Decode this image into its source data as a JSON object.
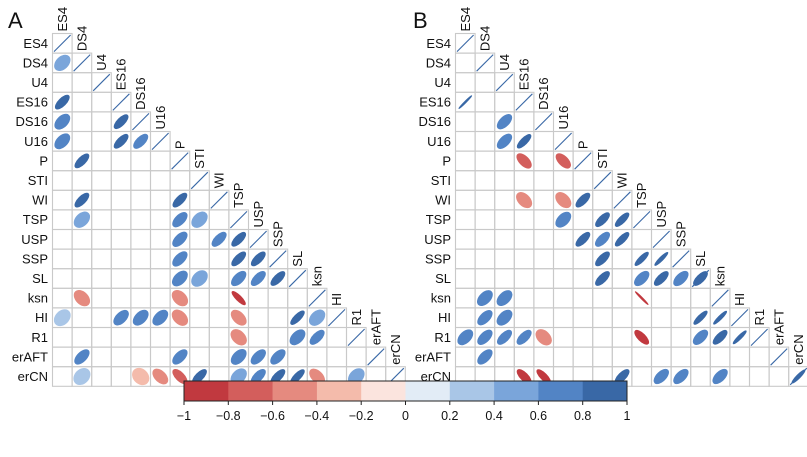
{
  "chart_data": {
    "type": "correlogram",
    "variables": [
      "ES4",
      "DS4",
      "U4",
      "ES16",
      "DS16",
      "U16",
      "P",
      "STI",
      "WI",
      "TSP",
      "USP",
      "SSP",
      "SL",
      "ksn",
      "HI",
      "R1",
      "erAFT",
      "erCN"
    ],
    "panels": [
      {
        "label": "A",
        "correlations": [
          {
            "row": "DS4",
            "col": "ES4",
            "r": 0.5
          },
          {
            "row": "ES16",
            "col": "ES4",
            "r": 0.8
          },
          {
            "row": "DS16",
            "col": "ES4",
            "r": 0.6
          },
          {
            "row": "DS16",
            "col": "ES16",
            "r": 0.8
          },
          {
            "row": "U16",
            "col": "ES4",
            "r": 0.6
          },
          {
            "row": "U16",
            "col": "ES16",
            "r": 0.8
          },
          {
            "row": "U16",
            "col": "DS16",
            "r": 0.75
          },
          {
            "row": "P",
            "col": "DS4",
            "r": 0.8
          },
          {
            "row": "WI",
            "col": "DS4",
            "r": 0.8
          },
          {
            "row": "WI",
            "col": "P",
            "r": 0.8
          },
          {
            "row": "TSP",
            "col": "DS4",
            "r": 0.5
          },
          {
            "row": "TSP",
            "col": "P",
            "r": 0.7
          },
          {
            "row": "TSP",
            "col": "STI",
            "r": 0.5
          },
          {
            "row": "USP",
            "col": "P",
            "r": 0.7
          },
          {
            "row": "USP",
            "col": "WI",
            "r": 0.75
          },
          {
            "row": "USP",
            "col": "TSP",
            "r": 0.8
          },
          {
            "row": "SSP",
            "col": "P",
            "r": 0.7
          },
          {
            "row": "SSP",
            "col": "TSP",
            "r": 0.8
          },
          {
            "row": "SSP",
            "col": "USP",
            "r": 0.8
          },
          {
            "row": "SL",
            "col": "P",
            "r": 0.6
          },
          {
            "row": "SL",
            "col": "STI",
            "r": 0.45
          },
          {
            "row": "SL",
            "col": "TSP",
            "r": 0.7
          },
          {
            "row": "SL",
            "col": "USP",
            "r": 0.75
          },
          {
            "row": "SL",
            "col": "SSP",
            "r": 0.8
          },
          {
            "row": "ksn",
            "col": "DS4",
            "r": -0.5
          },
          {
            "row": "ksn",
            "col": "P",
            "r": -0.5
          },
          {
            "row": "ksn",
            "col": "TSP",
            "r": -0.9
          },
          {
            "row": "HI",
            "col": "ES4",
            "r": 0.4
          },
          {
            "row": "HI",
            "col": "ES16",
            "r": 0.65
          },
          {
            "row": "HI",
            "col": "DS16",
            "r": 0.6
          },
          {
            "row": "HI",
            "col": "U16",
            "r": 0.6
          },
          {
            "row": "HI",
            "col": "P",
            "r": -0.5
          },
          {
            "row": "HI",
            "col": "TSP",
            "r": -0.6
          },
          {
            "row": "HI",
            "col": "SL",
            "r": 0.85
          },
          {
            "row": "HI",
            "col": "ksn",
            "r": 0.5
          },
          {
            "row": "R1",
            "col": "TSP",
            "r": -0.5
          },
          {
            "row": "R1",
            "col": "SL",
            "r": 0.6
          },
          {
            "row": "R1",
            "col": "ksn",
            "r": 0.75
          },
          {
            "row": "erAFT",
            "col": "DS4",
            "r": 0.7
          },
          {
            "row": "erAFT",
            "col": "P",
            "r": 0.7
          },
          {
            "row": "erAFT",
            "col": "TSP",
            "r": 0.6
          },
          {
            "row": "erAFT",
            "col": "USP",
            "r": 0.7
          },
          {
            "row": "erAFT",
            "col": "SSP",
            "r": 0.7
          },
          {
            "row": "erCN",
            "col": "DS4",
            "r": 0.35
          },
          {
            "row": "erCN",
            "col": "DS16",
            "r": -0.3
          },
          {
            "row": "erCN",
            "col": "U16",
            "r": -0.6
          },
          {
            "row": "erCN",
            "col": "P",
            "r": -0.75
          },
          {
            "row": "erCN",
            "col": "STI",
            "r": 0.8
          },
          {
            "row": "erCN",
            "col": "TSP",
            "r": 0.5
          },
          {
            "row": "erCN",
            "col": "USP",
            "r": 0.75
          },
          {
            "row": "erCN",
            "col": "SSP",
            "r": 0.8
          },
          {
            "row": "erCN",
            "col": "SL",
            "r": 0.85
          },
          {
            "row": "erCN",
            "col": "ksn",
            "r": -0.6
          },
          {
            "row": "erCN",
            "col": "R1",
            "r": 0.45
          }
        ]
      },
      {
        "label": "B",
        "correlations": [
          {
            "row": "ES16",
            "col": "ES4",
            "r": 1.0
          },
          {
            "row": "DS16",
            "col": "U4",
            "r": 0.7
          },
          {
            "row": "U16",
            "col": "U4",
            "r": 0.7
          },
          {
            "row": "U16",
            "col": "ES16",
            "r": 0.85
          },
          {
            "row": "P",
            "col": "ES16",
            "r": -0.7
          },
          {
            "row": "P",
            "col": "U16",
            "r": -0.7
          },
          {
            "row": "WI",
            "col": "ES16",
            "r": -0.55
          },
          {
            "row": "WI",
            "col": "U16",
            "r": -0.55
          },
          {
            "row": "WI",
            "col": "P",
            "r": 0.8
          },
          {
            "row": "TSP",
            "col": "U16",
            "r": 0.6
          },
          {
            "row": "TSP",
            "col": "STI",
            "r": 0.8
          },
          {
            "row": "TSP",
            "col": "WI",
            "r": 0.85
          },
          {
            "row": "USP",
            "col": "P",
            "r": 0.8
          },
          {
            "row": "USP",
            "col": "STI",
            "r": 0.75
          },
          {
            "row": "USP",
            "col": "WI",
            "r": 0.85
          },
          {
            "row": "SSP",
            "col": "STI",
            "r": 0.8
          },
          {
            "row": "SSP",
            "col": "TSP",
            "r": 0.9
          },
          {
            "row": "SSP",
            "col": "USP",
            "r": 0.95
          },
          {
            "row": "SL",
            "col": "STI",
            "r": 0.8
          },
          {
            "row": "SL",
            "col": "TSP",
            "r": 0.7
          },
          {
            "row": "SL",
            "col": "USP",
            "r": 0.8
          },
          {
            "row": "SL",
            "col": "SSP",
            "r": 0.7
          },
          {
            "row": "SL",
            "col": "SL",
            "r": 0.8
          },
          {
            "row": "ksn",
            "col": "DS4",
            "r": 0.6
          },
          {
            "row": "ksn",
            "col": "U4",
            "r": 0.6
          },
          {
            "row": "ksn",
            "col": "TSP",
            "r": -1.0
          },
          {
            "row": "HI",
            "col": "DS4",
            "r": 0.7
          },
          {
            "row": "HI",
            "col": "U4",
            "r": 0.6
          },
          {
            "row": "HI",
            "col": "SL",
            "r": 0.9
          },
          {
            "row": "HI",
            "col": "ksn",
            "r": 0.95
          },
          {
            "row": "R1",
            "col": "ES4",
            "r": 0.6
          },
          {
            "row": "R1",
            "col": "DS4",
            "r": 0.7
          },
          {
            "row": "R1",
            "col": "U4",
            "r": 0.75
          },
          {
            "row": "R1",
            "col": "ES16",
            "r": 0.75
          },
          {
            "row": "R1",
            "col": "DS16",
            "r": -0.5
          },
          {
            "row": "R1",
            "col": "TSP",
            "r": -0.8
          },
          {
            "row": "R1",
            "col": "SL",
            "r": 0.7
          },
          {
            "row": "R1",
            "col": "ksn",
            "r": 0.8
          },
          {
            "row": "R1",
            "col": "HI",
            "r": 0.95
          },
          {
            "row": "erAFT",
            "col": "DS4",
            "r": 0.7
          },
          {
            "row": "erCN",
            "col": "ES16",
            "r": -0.8
          },
          {
            "row": "erCN",
            "col": "DS16",
            "r": -0.85
          },
          {
            "row": "erCN",
            "col": "WI",
            "r": 0.8
          },
          {
            "row": "erCN",
            "col": "USP",
            "r": 0.7
          },
          {
            "row": "erCN",
            "col": "SSP",
            "r": 0.7
          },
          {
            "row": "erCN",
            "col": "ksn",
            "r": 0.7
          },
          {
            "row": "erCN",
            "col": "erCN",
            "r": 0.95
          }
        ]
      }
    ],
    "colorbar": {
      "ticks": [
        "−1",
        "−0.8",
        "−0.6",
        "−0.4",
        "−0.2",
        "0",
        "0.2",
        "0.4",
        "0.6",
        "0.8",
        "1"
      ],
      "bin_colors": [
        "#c1393f",
        "#d35e5c",
        "#e58a7f",
        "#f4bbab",
        "#fbe4de",
        "#e2ecf6",
        "#a9c6e7",
        "#7aa5da",
        "#5284c5",
        "#3968a6"
      ]
    }
  }
}
